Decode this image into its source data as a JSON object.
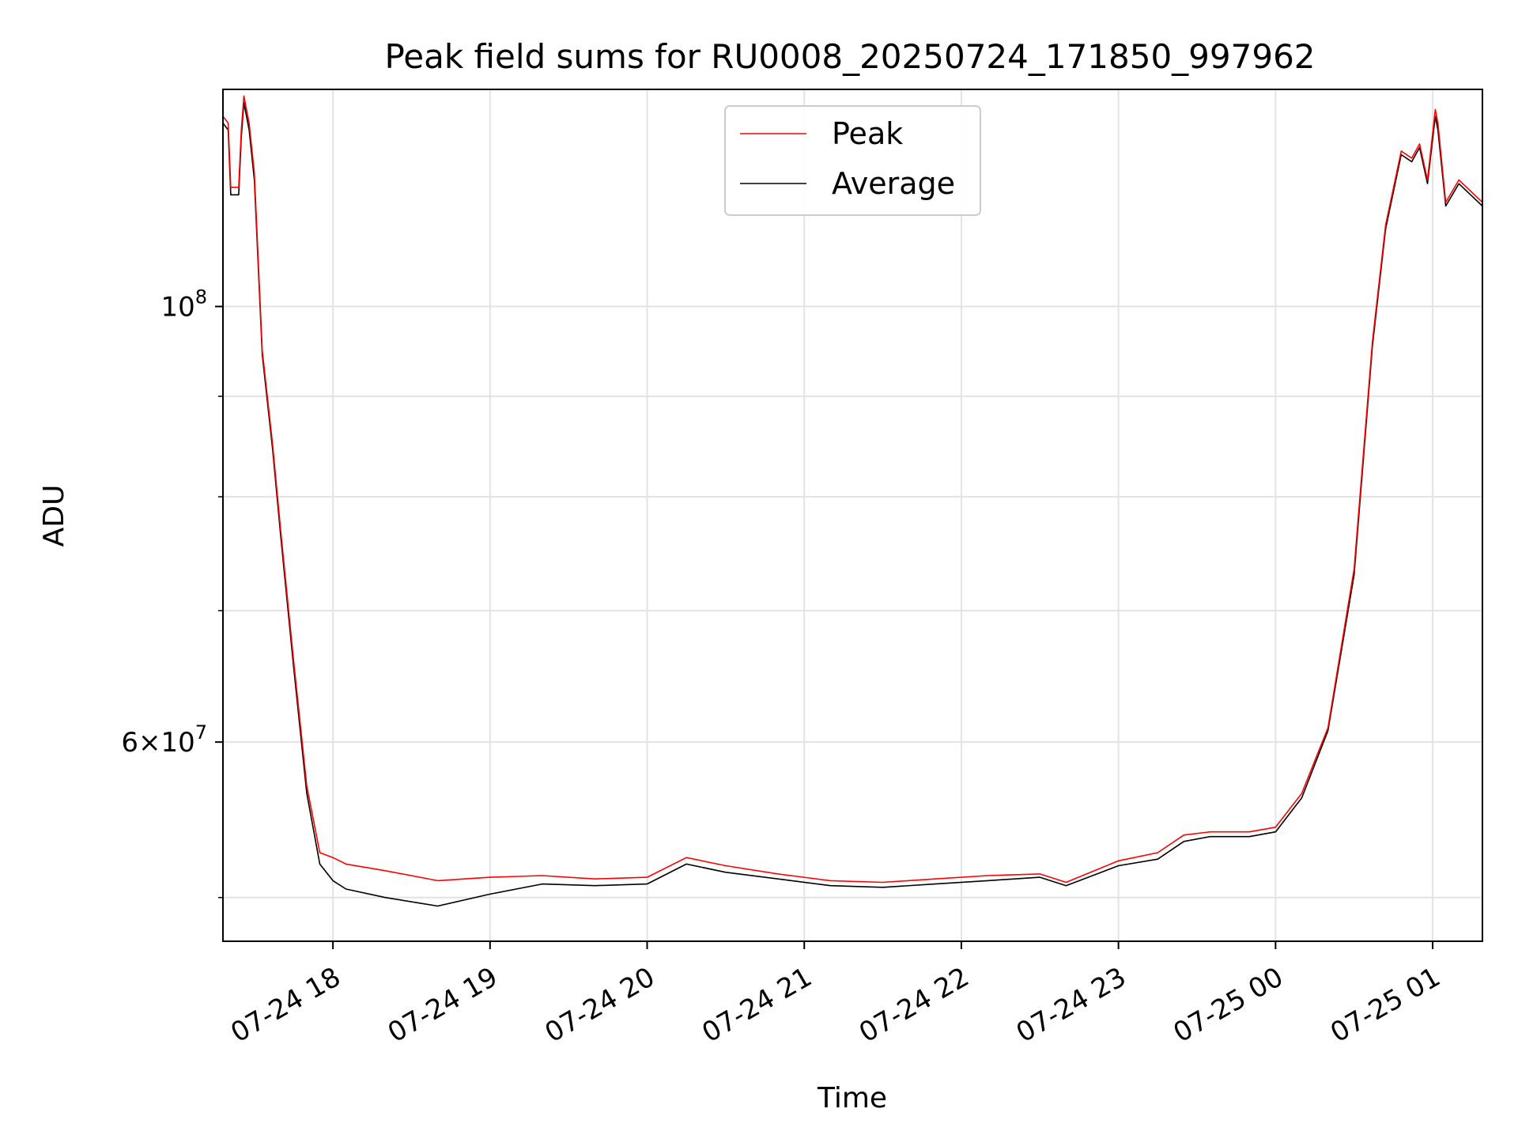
{
  "chart_data": {
    "type": "line",
    "title": "Peak field sums for RU0008_20250724_171850_997962",
    "xlabel": "Time",
    "ylabel": "ADU",
    "y_scale": "log",
    "ylim": [
      47500000,
      129000000
    ],
    "xlim": [
      "2025-07-24 17:18",
      "2025-07-25 01:19"
    ],
    "grid": true,
    "legend_position": "upper center",
    "x_ticks": [
      "07-24 18",
      "07-24 19",
      "07-24 20",
      "07-24 21",
      "07-24 22",
      "07-24 23",
      "07-25 00",
      "07-25 01"
    ],
    "x_tick_times": [
      "2025-07-24 18:00",
      "2025-07-24 19:00",
      "2025-07-24 20:00",
      "2025-07-24 21:00",
      "2025-07-24 22:00",
      "2025-07-24 23:00",
      "2025-07-25 00:00",
      "2025-07-25 01:00"
    ],
    "y_tick_labels": [
      {
        "value": 100000000,
        "label": "10^8"
      },
      {
        "value": 60000000,
        "label": "6×10^7"
      }
    ],
    "y_minor_ticks": [
      50000000,
      70000000,
      80000000,
      90000000
    ],
    "series": [
      {
        "name": "Peak",
        "color": "#ff0000",
        "x": [
          "2025-07-24 17:18",
          "2025-07-24 17:20",
          "2025-07-24 17:21",
          "2025-07-24 17:24",
          "2025-07-24 17:25",
          "2025-07-24 17:26",
          "2025-07-24 17:28",
          "2025-07-24 17:30",
          "2025-07-24 17:33",
          "2025-07-24 17:37",
          "2025-07-24 17:40",
          "2025-07-24 17:45",
          "2025-07-24 17:50",
          "2025-07-24 17:55",
          "2025-07-24 18:00",
          "2025-07-24 18:05",
          "2025-07-24 18:20",
          "2025-07-24 18:40",
          "2025-07-24 19:00",
          "2025-07-24 19:20",
          "2025-07-24 19:40",
          "2025-07-24 20:00",
          "2025-07-24 20:15",
          "2025-07-24 20:30",
          "2025-07-24 20:50",
          "2025-07-24 21:10",
          "2025-07-24 21:30",
          "2025-07-24 21:50",
          "2025-07-24 22:10",
          "2025-07-24 22:30",
          "2025-07-24 22:40",
          "2025-07-24 23:00",
          "2025-07-24 23:15",
          "2025-07-24 23:25",
          "2025-07-24 23:35",
          "2025-07-24 23:50",
          "2025-07-25 00:00",
          "2025-07-25 00:10",
          "2025-07-25 00:20",
          "2025-07-25 00:30",
          "2025-07-25 00:37",
          "2025-07-25 00:42",
          "2025-07-25 00:48",
          "2025-07-25 00:52",
          "2025-07-25 00:55",
          "2025-07-25 00:58",
          "2025-07-25 01:01",
          "2025-07-25 01:02",
          "2025-07-25 01:05",
          "2025-07-25 01:10",
          "2025-07-25 01:19"
        ],
        "y": [
          125000000,
          124000000,
          115000000,
          115000000,
          123000000,
          128000000,
          124000000,
          117000000,
          95000000,
          85000000,
          77000000,
          66000000,
          57000000,
          52700000,
          52400000,
          52000000,
          51600000,
          51000000,
          51200000,
          51300000,
          51100000,
          51200000,
          52400000,
          51900000,
          51400000,
          51000000,
          50900000,
          51100000,
          51300000,
          51400000,
          50900000,
          52200000,
          52700000,
          53800000,
          54000000,
          54000000,
          54300000,
          56500000,
          61000000,
          73500000,
          96000000,
          110000000,
          120000000,
          119000000,
          121000000,
          116000000,
          126000000,
          124000000,
          113000000,
          116000000,
          113000000
        ]
      },
      {
        "name": "Average",
        "color": "#000000",
        "x": [
          "2025-07-24 17:18",
          "2025-07-24 17:20",
          "2025-07-24 17:21",
          "2025-07-24 17:24",
          "2025-07-24 17:25",
          "2025-07-24 17:26",
          "2025-07-24 17:28",
          "2025-07-24 17:30",
          "2025-07-24 17:33",
          "2025-07-24 17:37",
          "2025-07-24 17:40",
          "2025-07-24 17:45",
          "2025-07-24 17:50",
          "2025-07-24 17:55",
          "2025-07-24 18:00",
          "2025-07-24 18:05",
          "2025-07-24 18:20",
          "2025-07-24 18:40",
          "2025-07-24 19:00",
          "2025-07-24 19:20",
          "2025-07-24 19:40",
          "2025-07-24 20:00",
          "2025-07-24 20:15",
          "2025-07-24 20:30",
          "2025-07-24 20:50",
          "2025-07-24 21:10",
          "2025-07-24 21:30",
          "2025-07-24 21:50",
          "2025-07-24 22:10",
          "2025-07-24 22:30",
          "2025-07-24 22:40",
          "2025-07-24 23:00",
          "2025-07-24 23:15",
          "2025-07-24 23:25",
          "2025-07-24 23:35",
          "2025-07-24 23:50",
          "2025-07-25 00:00",
          "2025-07-25 00:10",
          "2025-07-25 00:20",
          "2025-07-25 00:30",
          "2025-07-25 00:37",
          "2025-07-25 00:42",
          "2025-07-25 00:48",
          "2025-07-25 00:52",
          "2025-07-25 00:55",
          "2025-07-25 00:58",
          "2025-07-25 01:01",
          "2025-07-25 01:02",
          "2025-07-25 01:05",
          "2025-07-25 01:10",
          "2025-07-25 01:19"
        ],
        "y": [
          124000000,
          123000000,
          114000000,
          114000000,
          122000000,
          127000000,
          123000000,
          116000000,
          94500000,
          84500000,
          76500000,
          65500000,
          56500000,
          52000000,
          51000000,
          50500000,
          50000000,
          49500000,
          50200000,
          50800000,
          50700000,
          50800000,
          52000000,
          51500000,
          51100000,
          50700000,
          50600000,
          50800000,
          51000000,
          51200000,
          50700000,
          51900000,
          52300000,
          53400000,
          53700000,
          53700000,
          54000000,
          56200000,
          60800000,
          73000000,
          95500000,
          109500000,
          119500000,
          118500000,
          120500000,
          115500000,
          125000000,
          123000000,
          112500000,
          115500000,
          112500000
        ]
      }
    ]
  }
}
